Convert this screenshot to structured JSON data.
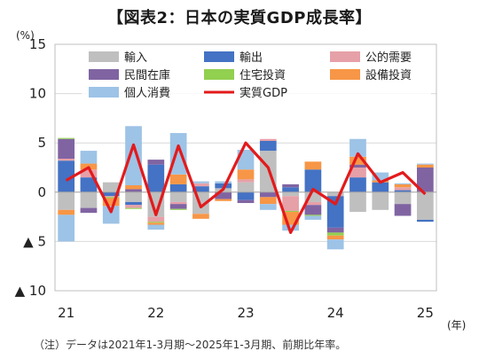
{
  "title": "【図表2：日本の実質GDP成長率】",
  "note": "（注）データは2021年1-3月期～2025年1-3月期、前期比年率。",
  "chart_data": {
    "type": "bar",
    "stacked": true,
    "quarters": [
      "2021Q1",
      "2021Q2",
      "2021Q3",
      "2021Q4",
      "2022Q1",
      "2022Q2",
      "2022Q3",
      "2022Q4",
      "2023Q1",
      "2023Q2",
      "2023Q3",
      "2023Q4",
      "2024Q1",
      "2024Q2",
      "2024Q3",
      "2024Q4",
      "2025Q1"
    ],
    "ylim": [
      -10,
      15
    ],
    "yticks": [
      {
        "v": 15,
        "label": "15"
      },
      {
        "v": 10,
        "label": "10"
      },
      {
        "v": 5,
        "label": "5"
      },
      {
        "v": 0,
        "label": "0"
      },
      {
        "v": -5,
        "label": "▲ 5"
      },
      {
        "v": -10,
        "label": "▲ 10"
      }
    ],
    "ylabel": "(%)",
    "xlabel": "(年)",
    "xticks": [
      {
        "index": 0,
        "label": "21"
      },
      {
        "index": 4,
        "label": "22"
      },
      {
        "index": 8,
        "label": "23"
      },
      {
        "index": 12,
        "label": "24"
      },
      {
        "index": 16,
        "label": "25"
      }
    ],
    "grid": "horizontal",
    "legend_position": "top",
    "series": [
      {
        "name": "輸入",
        "color": "#bfbfbf",
        "values": [
          -1.8,
          -1.6,
          1.0,
          -1.0,
          -2.5,
          -1.0,
          -2.2,
          0.4,
          1.0,
          4.2,
          -0.4,
          -1.0,
          -0.4,
          -2.0,
          -1.8,
          -1.2,
          -2.8
        ]
      },
      {
        "name": "輸出",
        "color": "#4472c4",
        "values": [
          3.2,
          1.5,
          -0.4,
          -0.3,
          2.8,
          0.8,
          0.6,
          0.5,
          -0.8,
          1.0,
          0.5,
          2.3,
          -3.2,
          1.5,
          1.0,
          0.2,
          -0.2
        ]
      },
      {
        "name": "公的需要",
        "color": "#e6a0a8",
        "values": [
          0.2,
          0.8,
          -0.1,
          -0.3,
          -0.5,
          -0.2,
          0.3,
          0.0,
          0.3,
          0.2,
          -1.5,
          -0.3,
          0.0,
          1.0,
          0.0,
          0.3,
          0.0
        ]
      },
      {
        "name": "民間在庫",
        "color": "#8064a2",
        "values": [
          2.0,
          -0.5,
          0.0,
          0.3,
          0.5,
          -0.5,
          0.0,
          -0.7,
          -0.3,
          -0.5,
          0.3,
          -1.0,
          -0.5,
          0.3,
          0.0,
          -1.2,
          2.5
        ]
      },
      {
        "name": "住宅投資",
        "color": "#92d050",
        "values": [
          0.1,
          0.0,
          -0.1,
          -0.1,
          -0.1,
          -0.1,
          0.0,
          0.0,
          0.0,
          0.0,
          -0.1,
          -0.1,
          -0.3,
          0.0,
          0.0,
          0.0,
          0.0
        ]
      },
      {
        "name": "設備投資",
        "color": "#f79646",
        "values": [
          -0.5,
          0.6,
          -0.8,
          0.4,
          -0.2,
          1.0,
          -0.5,
          -0.2,
          1.0,
          -0.7,
          -1.3,
          0.8,
          -0.4,
          0.8,
          0.2,
          0.3,
          0.3
        ]
      },
      {
        "name": "個人消費",
        "color": "#9dc3e6",
        "values": [
          -2.7,
          1.3,
          -1.8,
          6.0,
          -0.5,
          4.2,
          0.2,
          0.2,
          2.0,
          -0.6,
          -0.6,
          -0.4,
          -1.0,
          1.8,
          0.8,
          0.1,
          0.1
        ]
      }
    ],
    "line": {
      "name": "実質GDP",
      "color": "#e31a1c",
      "values": [
        1.2,
        2.5,
        -2.0,
        4.8,
        -2.3,
        4.7,
        -1.5,
        0.3,
        5.0,
        2.5,
        -4.1,
        0.3,
        -1.2,
        3.9,
        1.0,
        2.0,
        -0.2
      ]
    }
  }
}
